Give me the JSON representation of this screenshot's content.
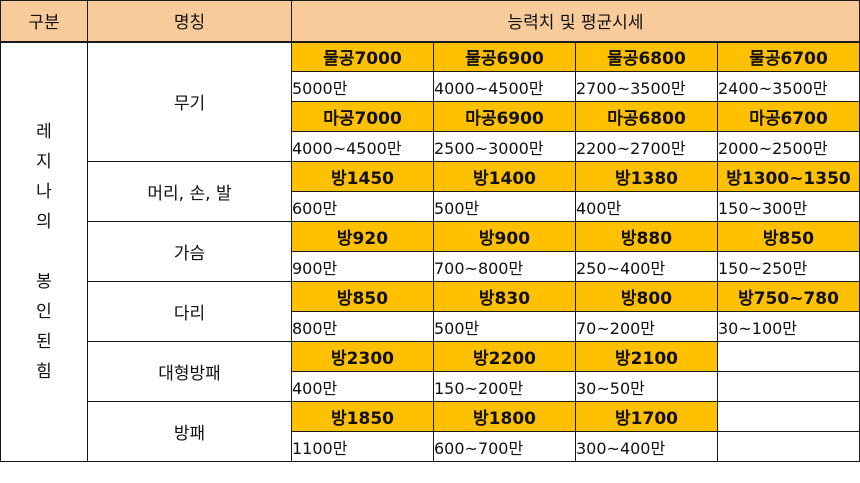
{
  "header": {
    "group": "구분",
    "name": "명칭",
    "stats": "능력치 및 평균시세"
  },
  "group": {
    "label_top": [
      "레",
      "지",
      "나",
      "의"
    ],
    "label_bottom": [
      "봉",
      "인",
      "된",
      "힘"
    ]
  },
  "categories": [
    {
      "name": "무기",
      "rows": [
        {
          "stats": [
            "물공7000",
            "물공6900",
            "물공6800",
            "물공6700"
          ],
          "prices": [
            "5000만",
            "4000~4500만",
            "2700~3500만",
            "2400~3500만"
          ]
        },
        {
          "stats": [
            "마공7000",
            "마공6900",
            "마공6800",
            "마공6700"
          ],
          "prices": [
            "4000~4500만",
            "2500~3000만",
            "2200~2700만",
            "2000~2500만"
          ]
        }
      ]
    },
    {
      "name": "머리, 손, 발",
      "rows": [
        {
          "stats": [
            "방1450",
            "방1400",
            "방1380",
            "방1300~1350"
          ],
          "prices": [
            "600만",
            "500만",
            "400만",
            "150~300만"
          ]
        }
      ]
    },
    {
      "name": "가슴",
      "rows": [
        {
          "stats": [
            "방920",
            "방900",
            "방880",
            "방850"
          ],
          "prices": [
            "900만",
            "700~800만",
            "250~400만",
            "150~250만"
          ]
        }
      ]
    },
    {
      "name": "다리",
      "rows": [
        {
          "stats": [
            "방850",
            "방830",
            "방800",
            "방750~780"
          ],
          "prices": [
            "800만",
            "500만",
            "70~200만",
            "30~100만"
          ]
        }
      ]
    },
    {
      "name": "대형방패",
      "rows": [
        {
          "stats": [
            "방2300",
            "방2200",
            "방2100"
          ],
          "prices": [
            "400만",
            "150~200만",
            "30~50만"
          ]
        }
      ]
    },
    {
      "name": "방패",
      "rows": [
        {
          "stats": [
            "방1850",
            "방1800",
            "방1700"
          ],
          "prices": [
            "1100만",
            "600~700만",
            "300~400만"
          ]
        }
      ]
    }
  ],
  "colors": {
    "header_bg": "#f8cb9a",
    "stat_bg": "#ffc000",
    "border": "#1a1a1a"
  }
}
